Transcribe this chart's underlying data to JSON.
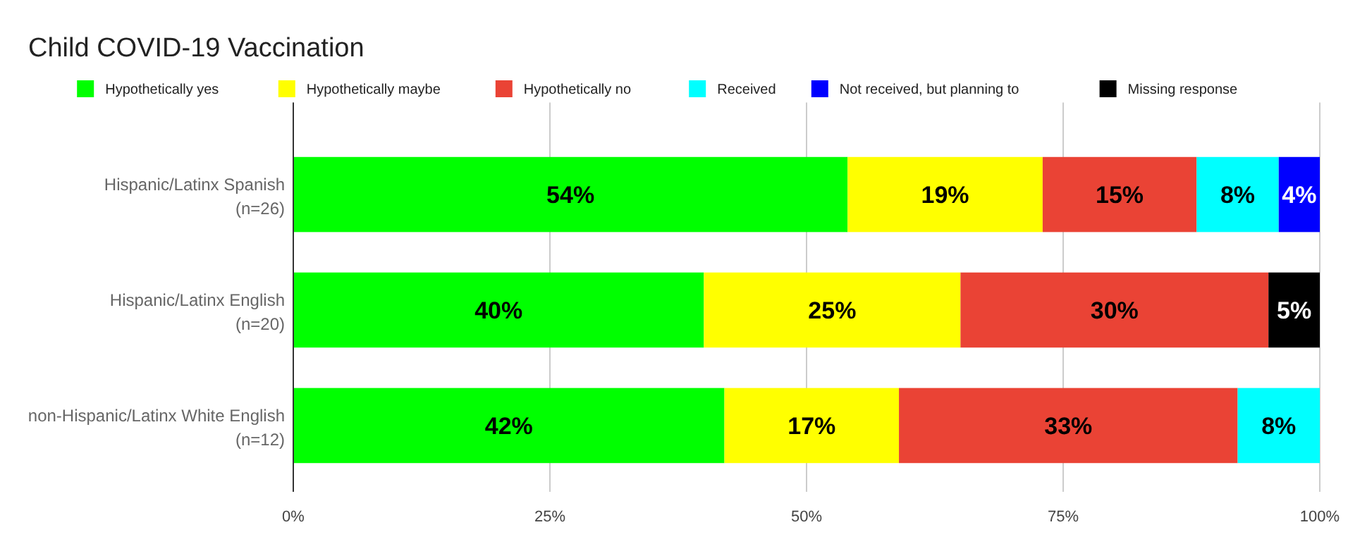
{
  "chart_data": {
    "type": "bar",
    "orientation": "horizontal",
    "stacked": true,
    "title": "Child COVID-19 Vaccination",
    "categories": [
      "Hispanic/Latinx Spanish\n(n=26)",
      "Hispanic/Latinx English\n(n=20)",
      "non-Hispanic/Latinx White English\n(n=12)"
    ],
    "series": [
      {
        "name": "Hypothetically yes",
        "color": "#00ff00",
        "values": [
          54,
          40,
          42
        ],
        "value_labels": [
          "54%",
          "40%",
          "42%"
        ]
      },
      {
        "name": "Hypothetically maybe",
        "color": "#ffff00",
        "values": [
          19,
          25,
          17
        ],
        "value_labels": [
          "19%",
          "25%",
          "17%"
        ]
      },
      {
        "name": "Hypothetically no",
        "color": "#ea4335",
        "values": [
          15,
          30,
          33
        ],
        "value_labels": [
          "15%",
          "30%",
          "33%"
        ]
      },
      {
        "name": "Received",
        "color": "#00ffff",
        "values": [
          8,
          null,
          8
        ],
        "value_labels": [
          "8%",
          null,
          "8%"
        ]
      },
      {
        "name": "Not received, but planning to",
        "color": "#0000ff",
        "values": [
          4,
          null,
          null
        ],
        "value_labels": [
          "4%",
          null,
          null
        ]
      },
      {
        "name": "Missing response",
        "color": "#000000",
        "values": [
          null,
          5,
          null
        ],
        "value_labels": [
          null,
          "5%",
          null
        ]
      }
    ],
    "xlim": [
      0,
      100
    ],
    "xticks": [
      {
        "value": 0,
        "label": "0%"
      },
      {
        "value": 25,
        "label": "25%"
      },
      {
        "value": 50,
        "label": "50%"
      },
      {
        "value": 75,
        "label": "75%"
      },
      {
        "value": 100,
        "label": "100%"
      }
    ],
    "grid": "x",
    "legend": "top"
  }
}
